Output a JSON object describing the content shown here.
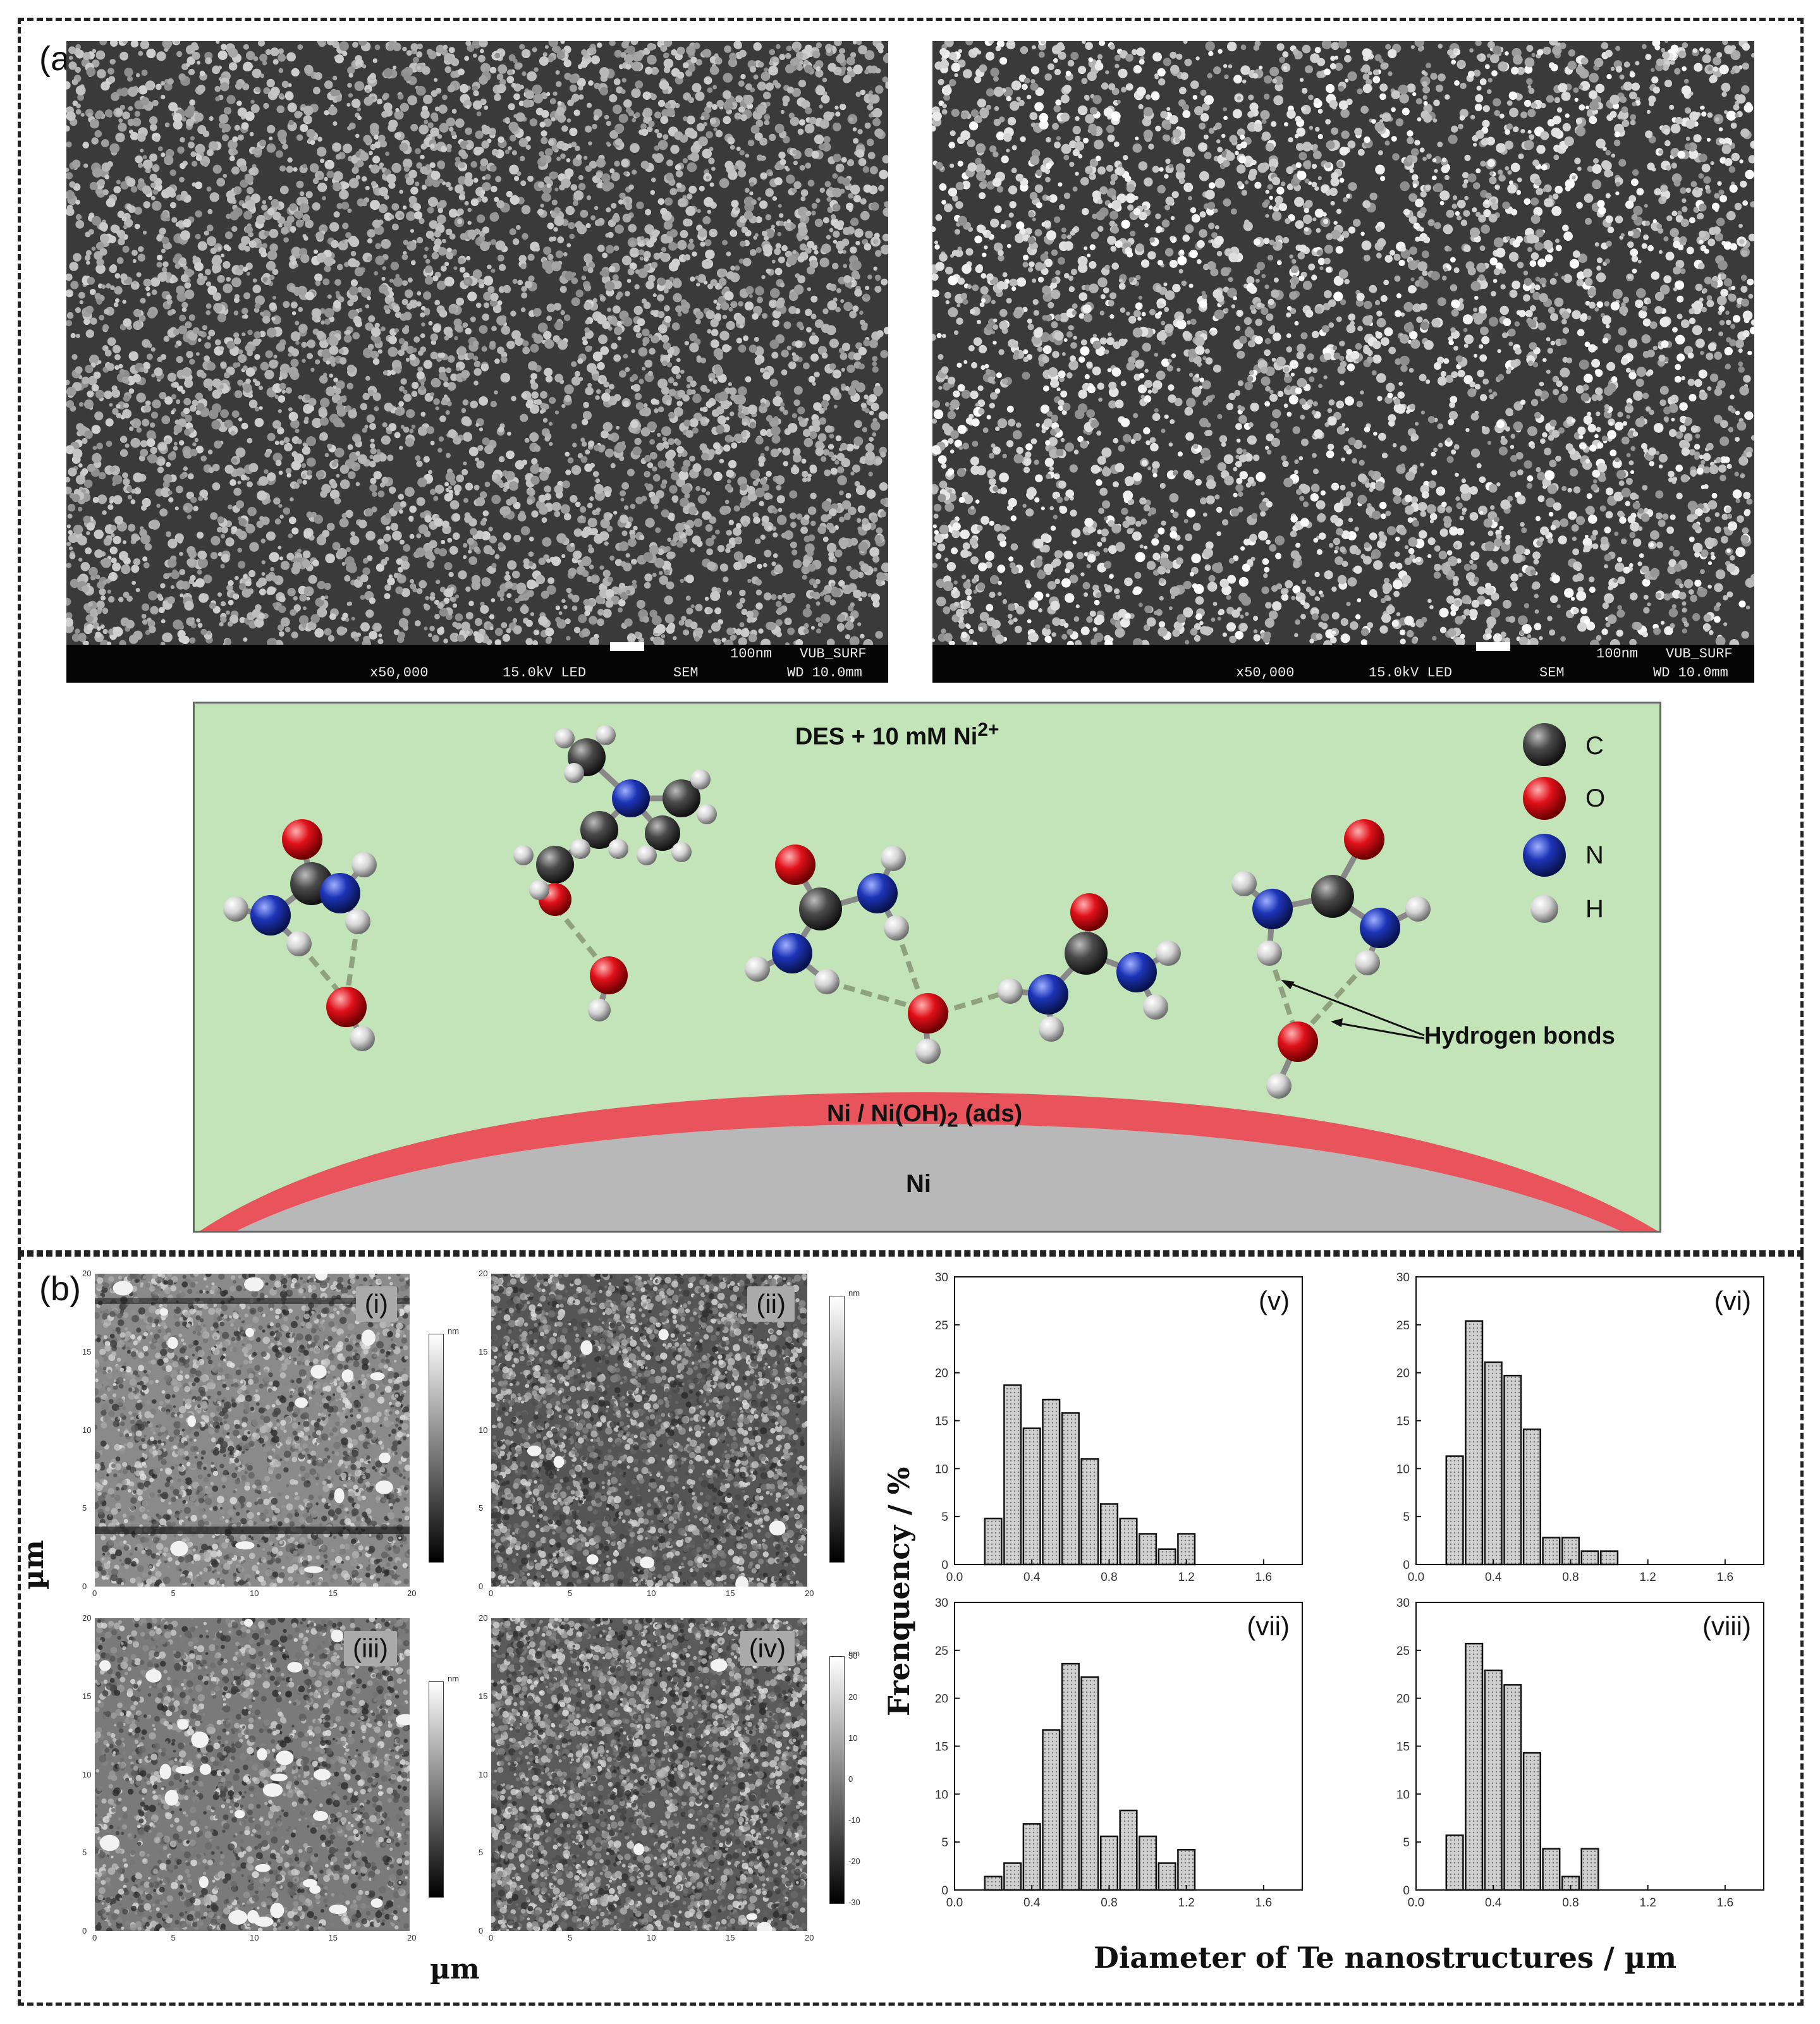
{
  "panel_a": {
    "label": "(a)",
    "sem_left": {
      "scale": "100nm",
      "lab": "VUB_SURF",
      "mag": "x50,000",
      "kv": "15.0kV LED",
      "mode": "SEM",
      "wd": "WD 10.0mm"
    },
    "sem_right": {
      "scale": "100nm",
      "lab": "VUB_SURF",
      "mag": "x50,000",
      "kv": "15.0kV LED",
      "mode": "SEM",
      "wd": "WD 10.0mm"
    },
    "diagram": {
      "title_main": "DES + 10 mM Ni",
      "title_sup": "2+",
      "legend": [
        {
          "label": "C",
          "color": "#4a4a4a"
        },
        {
          "label": "O",
          "color": "#e0101a"
        },
        {
          "label": "N",
          "color": "#1d34b8"
        },
        {
          "label": "H",
          "color": "#d4d4d4"
        }
      ],
      "hbond_label": "Hydrogen bonds",
      "layer_main": "Ni / Ni(OH)",
      "layer_sub": "2",
      "layer_suffix": " (ads)",
      "substrate_label": "Ni"
    }
  },
  "panel_b": {
    "label": "(b)",
    "afm_tags": [
      "(i)",
      "(ii)",
      "(iii)",
      "(iv)"
    ],
    "afm_axis_label": "µm",
    "afm_x_ticks": [
      "0",
      "5",
      "10",
      "15",
      "20"
    ],
    "afm_y_ticks": [
      "0",
      "5",
      "10",
      "15",
      "20"
    ],
    "colorbar_unit": "nm",
    "colorbar_ticks": [
      "30",
      "20",
      "10",
      "0",
      "-10",
      "-20",
      "-30"
    ]
  },
  "chart_data": [
    {
      "type": "bar",
      "tag": "(v)",
      "x": [
        0.1,
        0.2,
        0.3,
        0.4,
        0.5,
        0.6,
        0.7,
        0.8,
        0.9,
        1.0,
        1.1,
        1.2,
        1.3,
        1.4,
        1.5
      ],
      "values": [
        0,
        4.8,
        18.7,
        14.2,
        17.2,
        15.8,
        11.0,
        6.3,
        4.8,
        3.2,
        1.6,
        3.2,
        0,
        0,
        0
      ],
      "xlim": [
        0,
        1.8
      ],
      "ylim": [
        0,
        30
      ],
      "xticks": [
        "0.0",
        "0.4",
        "0.8",
        "1.2",
        "1.6"
      ],
      "yticks": [
        "0",
        "5",
        "10",
        "15",
        "20",
        "25",
        "30"
      ]
    },
    {
      "type": "bar",
      "tag": "(vi)",
      "x": [
        0.2,
        0.3,
        0.4,
        0.5,
        0.6,
        0.7,
        0.8,
        0.9,
        1.0,
        1.1,
        1.2,
        1.3
      ],
      "values": [
        11.3,
        25.4,
        21.1,
        19.7,
        14.1,
        2.8,
        2.8,
        1.4,
        1.4,
        0,
        0,
        0
      ],
      "xlim": [
        0,
        1.8
      ],
      "ylim": [
        0,
        30
      ],
      "xticks": [
        "0.0",
        "0.4",
        "0.8",
        "1.2",
        "1.6"
      ],
      "yticks": [
        "0",
        "5",
        "10",
        "15",
        "20",
        "25",
        "30"
      ]
    },
    {
      "type": "bar",
      "tag": "(vii)",
      "x": [
        0.2,
        0.3,
        0.4,
        0.5,
        0.6,
        0.7,
        0.8,
        0.9,
        1.0,
        1.1,
        1.2,
        1.3,
        1.4,
        1.5
      ],
      "values": [
        1.4,
        2.8,
        6.9,
        16.7,
        23.6,
        22.2,
        5.6,
        8.3,
        5.6,
        2.8,
        4.2,
        0,
        0,
        0
      ],
      "xlim": [
        0,
        1.8
      ],
      "ylim": [
        0,
        30
      ],
      "xticks": [
        "0.0",
        "0.4",
        "0.8",
        "1.2",
        "1.6"
      ],
      "yticks": [
        "0",
        "5",
        "10",
        "15",
        "20",
        "25",
        "30"
      ]
    },
    {
      "type": "bar",
      "tag": "(viii)",
      "x": [
        0.2,
        0.3,
        0.4,
        0.5,
        0.6,
        0.7,
        0.8,
        0.9,
        1.0,
        1.1
      ],
      "values": [
        5.7,
        25.7,
        22.9,
        21.4,
        14.3,
        4.3,
        1.4,
        4.3,
        0,
        0
      ],
      "xlim": [
        0,
        1.8
      ],
      "ylim": [
        0,
        30
      ],
      "xticks": [
        "0.0",
        "0.4",
        "0.8",
        "1.2",
        "1.6"
      ],
      "yticks": [
        "0",
        "5",
        "10",
        "15",
        "20",
        "25",
        "30"
      ]
    }
  ],
  "hist_labels": {
    "ylabel": "Frenquency / %",
    "xlabel": "Diameter of Te nanostructures / µm"
  }
}
